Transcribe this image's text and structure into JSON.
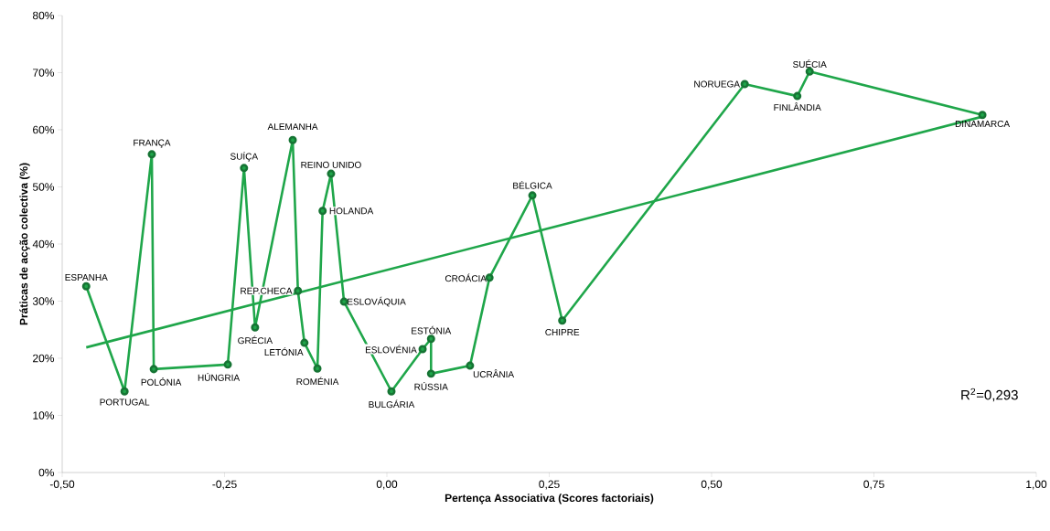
{
  "chart_data": {
    "type": "line",
    "xlabel": "Pertença Associativa (Scores factoriais)",
    "ylabel": "Práticas de acção colectiva (%)",
    "xlim": [
      -0.5,
      1.0
    ],
    "ylim": [
      0,
      80
    ],
    "xticks": [
      {
        "value": -0.5,
        "label": "-0,50"
      },
      {
        "value": -0.25,
        "label": "-0,25"
      },
      {
        "value": 0,
        "label": "0,00"
      },
      {
        "value": 0.25,
        "label": "0,25"
      },
      {
        "value": 0.5,
        "label": "0,50"
      },
      {
        "value": 0.75,
        "label": "0,75"
      },
      {
        "value": 1.0,
        "label": "1,00"
      }
    ],
    "yticks": [
      {
        "value": 0,
        "label": "0%"
      },
      {
        "value": 10,
        "label": "10%"
      },
      {
        "value": 20,
        "label": "20%"
      },
      {
        "value": 30,
        "label": "30%"
      },
      {
        "value": 40,
        "label": "40%"
      },
      {
        "value": 50,
        "label": "50%"
      },
      {
        "value": 60,
        "label": "60%"
      },
      {
        "value": 70,
        "label": "70%"
      },
      {
        "value": 80,
        "label": "80%"
      }
    ],
    "series": [
      {
        "color": "#1fa64a",
        "marker": "circle",
        "x": [
          -0.463,
          -0.404,
          -0.362,
          -0.359,
          -0.245,
          -0.22,
          -0.203,
          -0.145,
          -0.137,
          -0.127,
          -0.107,
          -0.099,
          -0.086,
          -0.066,
          0.007,
          0.055,
          0.068,
          0.068,
          0.128,
          0.158,
          0.224,
          0.27,
          0.551,
          0.632,
          0.651,
          0.917
        ],
        "values": [
          32.6,
          14.2,
          55.7,
          18.1,
          18.9,
          53.3,
          25.4,
          58.2,
          31.8,
          22.7,
          18.2,
          45.8,
          52.3,
          29.9,
          14.2,
          21.6,
          23.4,
          17.3,
          18.7,
          34.1,
          48.5,
          26.6,
          68.0,
          65.9,
          70.2,
          62.6
        ]
      },
      {
        "color": "#1fa64a",
        "marker": "none",
        "x": [
          -0.463,
          0.917
        ],
        "values": [
          21.9,
          62.3
        ]
      }
    ],
    "annotations": [
      {
        "text": "ESPANHA",
        "x": -0.463,
        "y": 32.6
      },
      {
        "text": "PORTUGAL",
        "x": -0.404,
        "y": 14.2
      },
      {
        "text": "FRANÇA",
        "x": -0.362,
        "y": 55.7
      },
      {
        "text": "POLÓNIA",
        "x": -0.359,
        "y": 18.1
      },
      {
        "text": "HÚNGRIA",
        "x": -0.245,
        "y": 18.9
      },
      {
        "text": "SUÍÇA",
        "x": -0.22,
        "y": 53.3
      },
      {
        "text": "GRÉCIA",
        "x": -0.203,
        "y": 25.4
      },
      {
        "text": "ALEMANHA",
        "x": -0.145,
        "y": 58.2
      },
      {
        "text": "REP.CHECA",
        "x": -0.137,
        "y": 31.8
      },
      {
        "text": "LETÓNIA",
        "x": -0.127,
        "y": 22.7
      },
      {
        "text": "ROMÉNIA",
        "x": -0.107,
        "y": 18.2
      },
      {
        "text": "HOLANDA",
        "x": -0.099,
        "y": 45.8
      },
      {
        "text": "REINO UNIDO",
        "x": -0.086,
        "y": 52.3
      },
      {
        "text": "ESLOVÁQUIA",
        "x": -0.066,
        "y": 29.9
      },
      {
        "text": "BULGÁRIA",
        "x": 0.007,
        "y": 14.2
      },
      {
        "text": "ESLOVÉNIA",
        "x": 0.055,
        "y": 21.6
      },
      {
        "text": "ESTÓNIA",
        "x": 0.068,
        "y": 23.4
      },
      {
        "text": "RÚSSIA",
        "x": 0.068,
        "y": 17.3
      },
      {
        "text": "UCRÂNIA",
        "x": 0.128,
        "y": 18.7
      },
      {
        "text": "CROÁCIA",
        "x": 0.158,
        "y": 34.1
      },
      {
        "text": "BÉLGICA",
        "x": 0.224,
        "y": 48.5
      },
      {
        "text": "CHIPRE",
        "x": 0.27,
        "y": 26.6
      },
      {
        "text": "NORUEGA",
        "x": 0.551,
        "y": 68.0
      },
      {
        "text": "FINLÂNDIA",
        "x": 0.632,
        "y": 65.9
      },
      {
        "text": "SUÉCIA",
        "x": 0.651,
        "y": 70.2
      },
      {
        "text": "DINAMARCA",
        "x": 0.917,
        "y": 62.6
      },
      "R$^{2}$=0,293"
    ]
  }
}
